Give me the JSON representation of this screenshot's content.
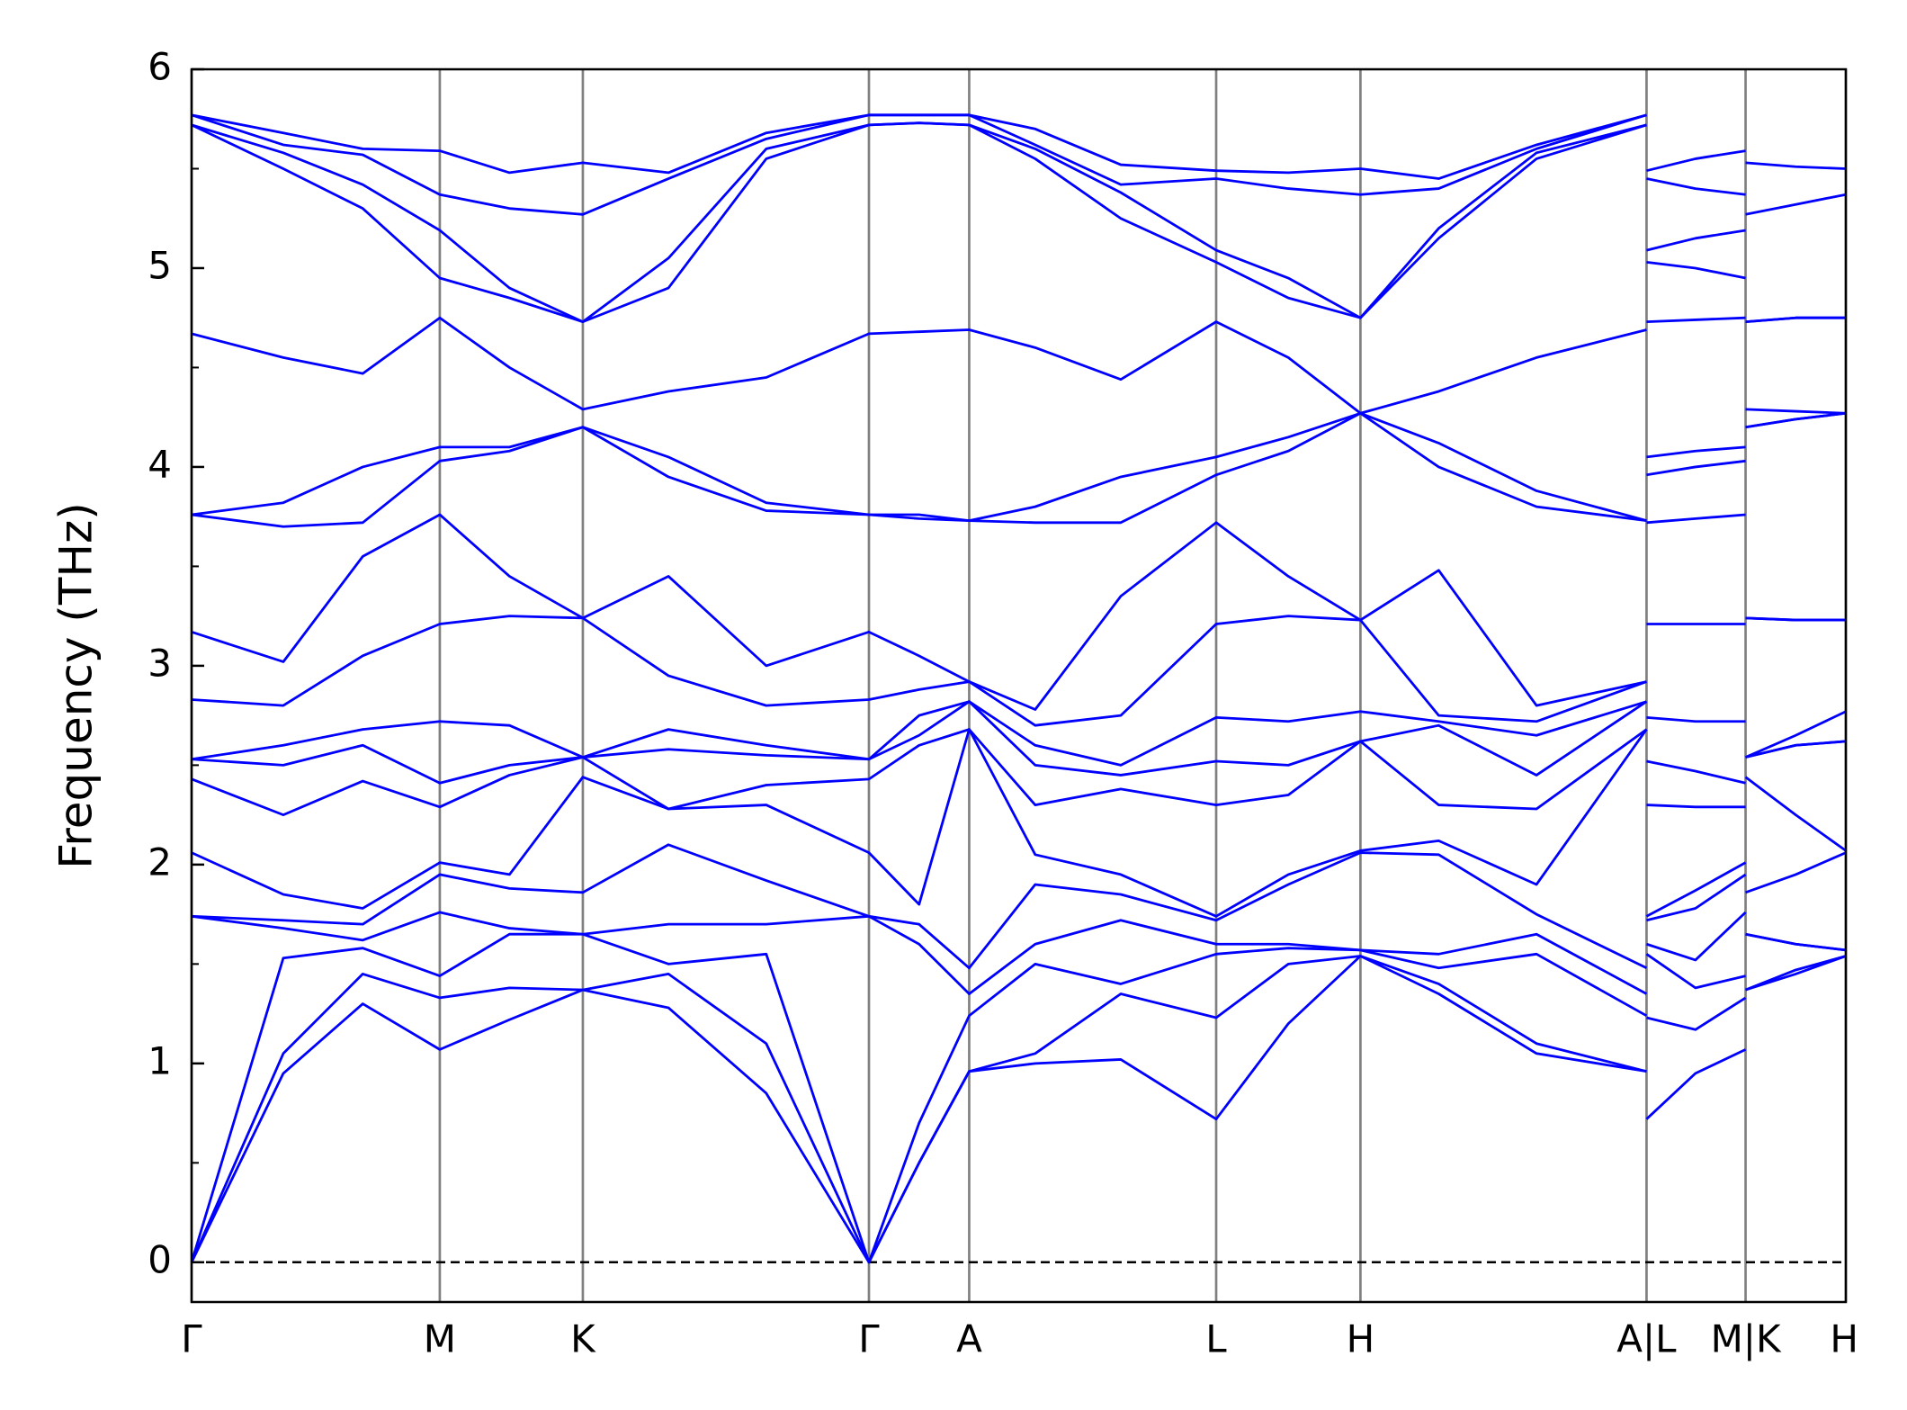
{
  "chart_data": {
    "type": "line",
    "y_label": "Frequency (THz)",
    "x": [
      0,
      75,
      140,
      203,
      260,
      320,
      390,
      470,
      554,
      595,
      636,
      690,
      760,
      838,
      897,
      956,
      1020,
      1100,
      1190,
      1190,
      1190,
      1230,
      1271,
      1271,
      1271,
      1312,
      1353
    ],
    "xlim": [
      0,
      1353
    ],
    "xticks": [
      {
        "value": 0,
        "label": "Γ"
      },
      {
        "value": 203,
        "label": "M"
      },
      {
        "value": 320,
        "label": "K"
      },
      {
        "value": 554,
        "label": "Γ"
      },
      {
        "value": 636,
        "label": "A"
      },
      {
        "value": 838,
        "label": "L"
      },
      {
        "value": 956,
        "label": "H"
      },
      {
        "value": 1190,
        "label": "A|L"
      },
      {
        "value": 1271,
        "label": "M|K"
      },
      {
        "value": 1353,
        "label": "H"
      }
    ],
    "ylim": [
      -0.2,
      6
    ],
    "yticks": [
      0,
      1,
      2,
      3,
      4,
      5,
      6
    ],
    "yminorticks": [
      0.5,
      1.5,
      2.5,
      3.5,
      4.5,
      5.5
    ],
    "zero_line": 0,
    "grid": true,
    "series": [
      {
        "color": "#0000ff",
        "values": [
          0,
          0.95,
          1.3,
          1.07,
          1.22,
          1.37,
          1.28,
          0.85,
          0,
          0.5,
          0.96,
          1.0,
          1.02,
          0.72,
          1.2,
          1.54,
          1.35,
          1.05,
          0.96,
          null,
          0.72,
          0.95,
          1.07,
          null,
          1.37,
          1.45,
          1.54
        ]
      },
      {
        "color": "#0000ff",
        "values": [
          0,
          1.05,
          1.45,
          1.33,
          1.38,
          1.37,
          1.45,
          1.1,
          0,
          0.5,
          0.96,
          1.05,
          1.35,
          1.23,
          1.5,
          1.54,
          1.4,
          1.1,
          0.96,
          null,
          1.23,
          1.17,
          1.33,
          null,
          1.37,
          1.47,
          1.54
        ]
      },
      {
        "color": "#0000ff",
        "values": [
          0,
          1.53,
          1.58,
          1.44,
          1.65,
          1.65,
          1.5,
          1.55,
          0,
          0.7,
          1.24,
          1.5,
          1.4,
          1.55,
          1.58,
          1.57,
          1.48,
          1.55,
          1.24,
          null,
          1.55,
          1.38,
          1.44,
          null,
          1.65,
          1.6,
          1.57
        ]
      },
      {
        "color": "#0000ff",
        "values": [
          1.74,
          1.68,
          1.62,
          1.76,
          1.68,
          1.65,
          1.7,
          1.7,
          1.74,
          1.6,
          1.35,
          1.6,
          1.72,
          1.6,
          1.6,
          1.57,
          1.55,
          1.65,
          1.35,
          null,
          1.6,
          1.52,
          1.76,
          null,
          1.65,
          1.6,
          1.57
        ]
      },
      {
        "color": "#0000ff",
        "values": [
          1.74,
          1.72,
          1.7,
          1.95,
          1.88,
          1.86,
          2.1,
          1.92,
          1.74,
          1.7,
          1.48,
          1.9,
          1.85,
          1.72,
          1.9,
          2.06,
          2.05,
          1.75,
          1.48,
          null,
          1.72,
          1.78,
          1.95,
          null,
          1.86,
          1.95,
          2.06
        ]
      },
      {
        "color": "#0000ff",
        "values": [
          2.06,
          1.85,
          1.78,
          2.01,
          1.95,
          2.44,
          2.28,
          2.3,
          2.06,
          1.8,
          2.68,
          2.05,
          1.95,
          1.74,
          1.95,
          2.07,
          2.12,
          1.9,
          2.68,
          null,
          1.74,
          1.87,
          2.01,
          null,
          2.44,
          2.25,
          2.07
        ]
      },
      {
        "color": "#0000ff",
        "values": [
          2.43,
          2.25,
          2.42,
          2.29,
          2.45,
          2.54,
          2.28,
          2.4,
          2.43,
          2.6,
          2.68,
          2.3,
          2.38,
          2.3,
          2.35,
          2.62,
          2.3,
          2.28,
          2.68,
          null,
          2.3,
          2.29,
          2.29,
          null,
          2.54,
          2.6,
          2.62
        ]
      },
      {
        "color": "#0000ff",
        "values": [
          2.53,
          2.5,
          2.6,
          2.41,
          2.5,
          2.54,
          2.58,
          2.55,
          2.53,
          2.65,
          2.82,
          2.5,
          2.45,
          2.52,
          2.5,
          2.62,
          2.7,
          2.45,
          2.82,
          null,
          2.52,
          2.47,
          2.41,
          null,
          2.54,
          2.6,
          2.62
        ]
      },
      {
        "color": "#0000ff",
        "values": [
          2.53,
          2.6,
          2.68,
          2.72,
          2.7,
          2.54,
          2.68,
          2.6,
          2.53,
          2.75,
          2.82,
          2.6,
          2.5,
          2.74,
          2.72,
          2.77,
          2.72,
          2.65,
          2.82,
          null,
          2.74,
          2.72,
          2.72,
          null,
          2.54,
          2.65,
          2.77
        ]
      },
      {
        "color": "#0000ff",
        "values": [
          2.83,
          2.8,
          3.05,
          3.21,
          3.25,
          3.24,
          2.95,
          2.8,
          2.83,
          2.88,
          2.92,
          2.7,
          2.75,
          3.21,
          3.25,
          3.23,
          2.75,
          2.72,
          2.92,
          null,
          3.21,
          3.21,
          3.21,
          null,
          3.24,
          3.23,
          3.23
        ]
      },
      {
        "color": "#0000ff",
        "values": [
          3.17,
          3.02,
          3.55,
          3.76,
          3.45,
          3.24,
          3.45,
          3.0,
          3.17,
          3.05,
          2.92,
          2.78,
          3.35,
          3.72,
          3.45,
          3.23,
          3.48,
          2.8,
          2.92,
          null,
          3.72,
          3.74,
          3.76,
          null,
          3.24,
          3.23,
          3.23
        ]
      },
      {
        "color": "#0000ff",
        "values": [
          3.76,
          3.7,
          3.72,
          4.03,
          4.08,
          4.2,
          3.95,
          3.78,
          3.76,
          3.74,
          3.73,
          3.72,
          3.72,
          3.96,
          4.08,
          4.27,
          4.0,
          3.8,
          3.73,
          null,
          3.96,
          4.0,
          4.03,
          null,
          4.2,
          4.24,
          4.27
        ]
      },
      {
        "color": "#0000ff",
        "values": [
          3.76,
          3.82,
          4.0,
          4.1,
          4.1,
          4.2,
          4.05,
          3.82,
          3.76,
          3.76,
          3.73,
          3.8,
          3.95,
          4.05,
          4.15,
          4.27,
          4.12,
          3.88,
          3.73,
          null,
          4.05,
          4.08,
          4.1,
          null,
          4.2,
          4.24,
          4.27
        ]
      },
      {
        "color": "#0000ff",
        "values": [
          4.67,
          4.55,
          4.47,
          4.75,
          4.5,
          4.29,
          4.38,
          4.45,
          4.67,
          4.68,
          4.69,
          4.6,
          4.44,
          4.73,
          4.55,
          4.27,
          4.38,
          4.55,
          4.69,
          null,
          4.73,
          4.74,
          4.75,
          null,
          4.29,
          4.28,
          4.27
        ]
      },
      {
        "color": "#0000ff",
        "values": [
          5.72,
          5.5,
          5.3,
          4.95,
          4.85,
          4.73,
          4.9,
          5.55,
          5.72,
          5.73,
          5.72,
          5.55,
          5.25,
          5.03,
          4.85,
          4.75,
          5.15,
          5.55,
          5.72,
          null,
          5.03,
          5.0,
          4.95,
          null,
          4.73,
          4.75,
          4.75
        ]
      },
      {
        "color": "#0000ff",
        "values": [
          5.72,
          5.58,
          5.42,
          5.19,
          4.9,
          4.73,
          5.05,
          5.6,
          5.72,
          5.73,
          5.72,
          5.6,
          5.38,
          5.09,
          4.95,
          4.75,
          5.2,
          5.58,
          5.72,
          null,
          5.09,
          5.15,
          5.19,
          null,
          4.73,
          4.75,
          4.75
        ]
      },
      {
        "color": "#0000ff",
        "values": [
          5.77,
          5.62,
          5.57,
          5.37,
          5.3,
          5.27,
          5.45,
          5.65,
          5.77,
          5.77,
          5.77,
          5.62,
          5.42,
          5.45,
          5.4,
          5.37,
          5.4,
          5.6,
          5.77,
          null,
          5.45,
          5.4,
          5.37,
          null,
          5.27,
          5.32,
          5.37
        ]
      },
      {
        "color": "#0000ff",
        "values": [
          5.77,
          5.68,
          5.6,
          5.59,
          5.48,
          5.53,
          5.48,
          5.68,
          5.77,
          5.77,
          5.77,
          5.7,
          5.52,
          5.49,
          5.48,
          5.5,
          5.45,
          5.62,
          5.77,
          null,
          5.49,
          5.55,
          5.59,
          null,
          5.53,
          5.51,
          5.5
        ]
      }
    ]
  }
}
